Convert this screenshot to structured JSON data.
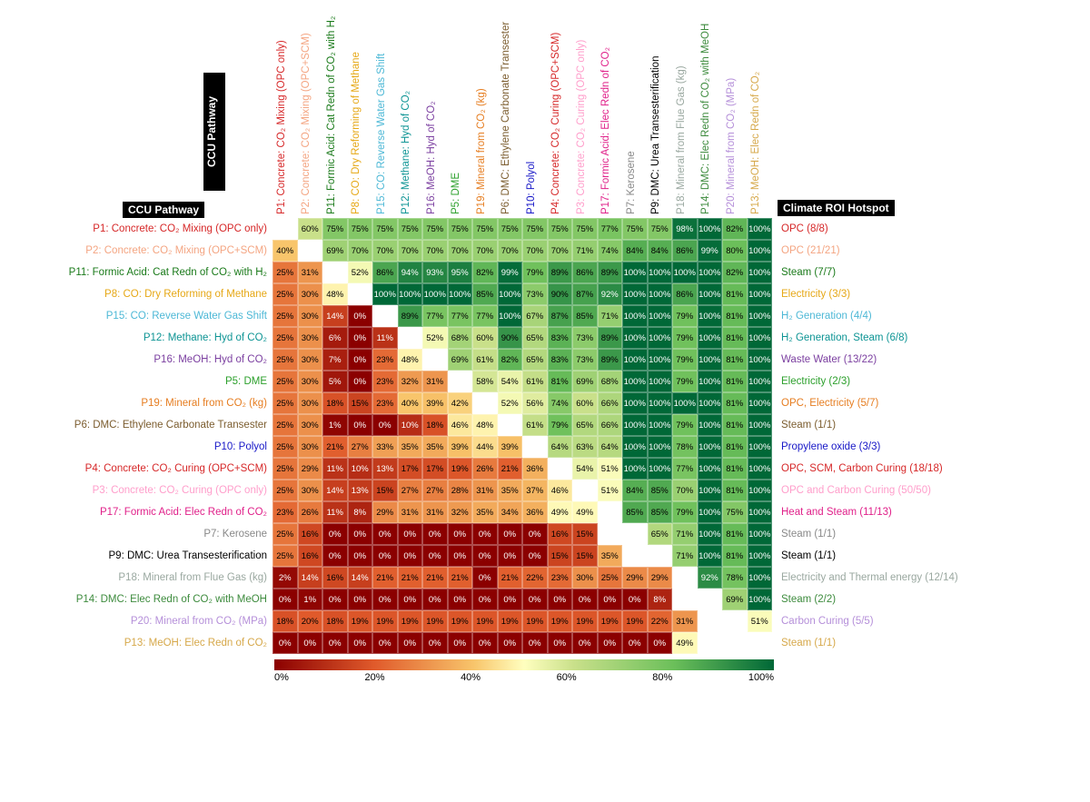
{
  "chart": {
    "type": "heatmap",
    "title_left_rotated": "CCU Pathway",
    "title_left_horiz": "CCU Pathway",
    "title_right": "Climate ROI Hotspot",
    "colorscale": {
      "min": 0,
      "max": 100,
      "ticks": [
        "0%",
        "20%",
        "40%",
        "60%",
        "80%",
        "100%"
      ],
      "stops": [
        {
          "p": 0,
          "c": "#8b0000"
        },
        {
          "p": 20,
          "c": "#e05a2b"
        },
        {
          "p": 40,
          "c": "#f8c56b"
        },
        {
          "p": 50,
          "c": "#ffffbf"
        },
        {
          "p": 60,
          "c": "#c9e08a"
        },
        {
          "p": 80,
          "c": "#6bbf5a"
        },
        {
          "p": 100,
          "c": "#006837"
        }
      ]
    },
    "pathway_colors": {
      "P1": "#d62728",
      "P2": "#f4a582",
      "P11": "#1a7a1a",
      "P8": "#e6a817",
      "P15": "#4db8d6",
      "P12": "#0d9494",
      "P16": "#7b3fa0",
      "P5": "#2ca02c",
      "P19": "#e67e22",
      "P6": "#7b5c2e",
      "P10": "#1717c7",
      "P4": "#d62728",
      "P3": "#ff9ecb",
      "P17": "#e0218a",
      "P7": "#888888",
      "P9": "#000000",
      "P18": "#9aa8a0",
      "P14": "#3d8b3d",
      "P20": "#b58fd9",
      "P13": "#d6a84a"
    },
    "order": [
      "P1",
      "P2",
      "P11",
      "P8",
      "P15",
      "P12",
      "P16",
      "P5",
      "P19",
      "P6",
      "P10",
      "P4",
      "P3",
      "P17",
      "P7",
      "P9",
      "P18",
      "P14",
      "P20",
      "P13"
    ],
    "pathways": {
      "P1": "P1: Concrete: CO₂ Mixing  (OPC only)",
      "P2": "P2: Concrete: CO₂ Mixing  (OPC+SCM)",
      "P11": "P11: Formic Acid: Cat Redn of CO₂ with H₂",
      "P8": "P8: CO: Dry Reforming of Methane",
      "P15": "P15: CO: Reverse Water Gas Shift",
      "P12": "P12: Methane: Hyd of CO₂",
      "P16": "P16: MeOH: Hyd of CO₂",
      "P5": "P5: DME",
      "P19": "P19: Mineral from CO₂ (kg)",
      "P6": "P6: DMC: Ethylene Carbonate Transester",
      "P10": "P10: Polyol",
      "P4": "P4: Concrete: CO₂ Curing  (OPC+SCM)",
      "P3": "P3: Concrete: CO₂ Curing (OPC only)",
      "P17": "P17: Formic Acid: Elec Redn of CO₂",
      "P7": "P7: Kerosene",
      "P9": "P9: DMC: Urea Transesterification",
      "P18": "P18: Mineral from Flue Gas (kg)",
      "P14": "P14: DMC: Elec Redn of CO₂ with MeOH",
      "P20": "P20: Mineral from CO₂ (MPa)",
      "P13": "P13: MeOH: Elec Redn of CO₂"
    },
    "hotspots": {
      "P1": "OPC (8/8)",
      "P2": "OPC (21/21)",
      "P11": "Steam (7/7)",
      "P8": "Electricity (3/3)",
      "P15": "H₂ Generation (4/4)",
      "P12": "H₂ Generation, Steam (6/8)",
      "P16": "Waste Water (13/22)",
      "P5": "Electricity (2/3)",
      "P19": "OPC, Electricity (5/7)",
      "P6": "Steam (1/1)",
      "P10": "Propylene oxide (3/3)",
      "P4": "OPC, SCM, Carbon Curing (18/18)",
      "P3": "OPC and Carbon Curing (50/50)",
      "P17": "Heat and  Steam (11/13)",
      "P7": "Steam (1/1)",
      "P9": "Steam (1/1)",
      "P18": "Electricity and Thermal energy (12/14)",
      "P14": "Steam (2/2)",
      "P20": "Carbon Curing (5/5)",
      "P13": "Steam (1/1)"
    },
    "matrix": {
      "P1": [
        null,
        60,
        75,
        75,
        75,
        75,
        75,
        75,
        75,
        75,
        75,
        75,
        75,
        77,
        75,
        75,
        98,
        100,
        82,
        100
      ],
      "P2": [
        40,
        null,
        69,
        70,
        70,
        70,
        70,
        70,
        70,
        70,
        70,
        70,
        71,
        74,
        84,
        84,
        86,
        99,
        80,
        100
      ],
      "P11": [
        25,
        31,
        null,
        52,
        86,
        94,
        93,
        95,
        82,
        99,
        79,
        89,
        86,
        89,
        100,
        100,
        100,
        100,
        82,
        100
      ],
      "P8": [
        25,
        30,
        48,
        null,
        100,
        100,
        100,
        100,
        85,
        100,
        73,
        90,
        87,
        92,
        100,
        100,
        86,
        100,
        81,
        100
      ],
      "P15": [
        25,
        30,
        14,
        0,
        null,
        89,
        77,
        77,
        77,
        100,
        67,
        87,
        85,
        71,
        100,
        100,
        79,
        100,
        81,
        100
      ],
      "P12": [
        25,
        30,
        6,
        0,
        11,
        null,
        52,
        68,
        60,
        90,
        65,
        83,
        73,
        89,
        100,
        100,
        79,
        100,
        81,
        100
      ],
      "P16": [
        25,
        30,
        7,
        0,
        23,
        48,
        null,
        69,
        61,
        82,
        65,
        83,
        73,
        89,
        100,
        100,
        79,
        100,
        81,
        100
      ],
      "P5": [
        25,
        30,
        5,
        0,
        23,
        32,
        31,
        null,
        58,
        54,
        61,
        81,
        69,
        68,
        100,
        100,
        79,
        100,
        81,
        100
      ],
      "P19": [
        25,
        30,
        18,
        15,
        23,
        40,
        39,
        42,
        null,
        52,
        56,
        74,
        60,
        66,
        100,
        100,
        100,
        100,
        81,
        100
      ],
      "P6": [
        25,
        30,
        1,
        0,
        0,
        10,
        18,
        46,
        48,
        null,
        61,
        79,
        65,
        66,
        100,
        100,
        79,
        100,
        81,
        100
      ],
      "P10": [
        25,
        30,
        21,
        27,
        33,
        35,
        35,
        39,
        44,
        39,
        null,
        64,
        63,
        64,
        100,
        100,
        78,
        100,
        81,
        100
      ],
      "P4": [
        25,
        29,
        11,
        10,
        13,
        17,
        17,
        19,
        26,
        21,
        36,
        null,
        54,
        51,
        100,
        100,
        77,
        100,
        81,
        100
      ],
      "P3": [
        25,
        30,
        14,
        13,
        15,
        27,
        27,
        28,
        31,
        35,
        37,
        46,
        null,
        51,
        84,
        85,
        70,
        100,
        81,
        100
      ],
      "P17": [
        23,
        26,
        11,
        8,
        29,
        31,
        31,
        32,
        35,
        34,
        36,
        49,
        49,
        null,
        85,
        85,
        79,
        100,
        75,
        100
      ],
      "P7": [
        25,
        16,
        0,
        0,
        0,
        0,
        0,
        0,
        0,
        0,
        0,
        16,
        15,
        null,
        null,
        65,
        71,
        100,
        81,
        100
      ],
      "P9": [
        25,
        16,
        0,
        0,
        0,
        0,
        0,
        0,
        0,
        0,
        0,
        15,
        15,
        35,
        null,
        null,
        71,
        100,
        81,
        100
      ],
      "P18": [
        2,
        14,
        16,
        14,
        21,
        21,
        21,
        21,
        0,
        21,
        22,
        23,
        30,
        25,
        29,
        29,
        null,
        92,
        78,
        100
      ],
      "P14": [
        0,
        1,
        0,
        0,
        0,
        0,
        0,
        0,
        0,
        0,
        0,
        0,
        0,
        0,
        0,
        8,
        null,
        null,
        69,
        100
      ],
      "P20": [
        18,
        20,
        18,
        19,
        19,
        19,
        19,
        19,
        19,
        19,
        19,
        19,
        19,
        19,
        19,
        22,
        31,
        null,
        null,
        51
      ],
      "P13": [
        0,
        0,
        0,
        0,
        0,
        0,
        0,
        0,
        0,
        0,
        0,
        0,
        0,
        0,
        0,
        0,
        49,
        null,
        null,
        null
      ]
    },
    "cell_fontsize": 9.5,
    "label_fontsize": 11.5,
    "background_color": "#ffffff"
  }
}
